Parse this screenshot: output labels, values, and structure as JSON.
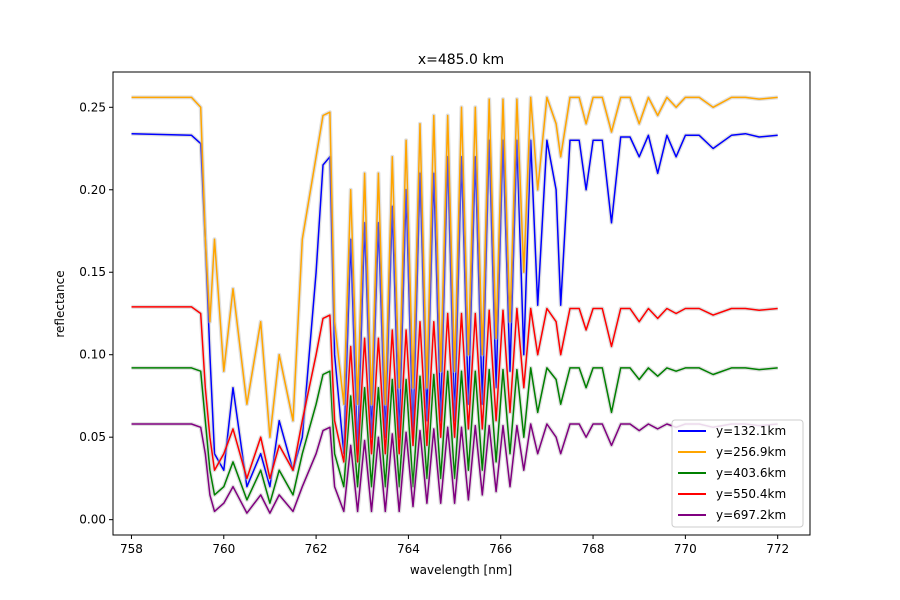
{
  "chart_data": {
    "type": "line",
    "title": "x=485.0 km",
    "xlabel": "wavelength [nm]",
    "ylabel": "reflectance",
    "xlim": [
      757.6,
      772.7
    ],
    "ylim": [
      -0.0093,
      0.2714
    ],
    "xticks": [
      758,
      760,
      762,
      764,
      766,
      768,
      770,
      772
    ],
    "yticks": [
      0.0,
      0.05,
      0.1,
      0.15,
      0.2,
      0.25
    ],
    "ytick_labels": [
      "0.00",
      "0.05",
      "0.10",
      "0.15",
      "0.20",
      "0.25"
    ],
    "grid": false,
    "legend_position": "lower-right",
    "series": [
      {
        "name": "y=132.1km",
        "color": "#0000ff",
        "x": [
          758.0,
          759.3,
          759.5,
          759.6,
          759.7,
          759.8,
          760.0,
          760.2,
          760.5,
          760.8,
          761.0,
          761.2,
          761.5,
          761.7,
          762.0,
          762.15,
          762.3,
          762.4,
          762.6,
          762.75,
          762.9,
          763.05,
          763.2,
          763.35,
          763.5,
          763.65,
          763.8,
          763.95,
          764.1,
          764.25,
          764.4,
          764.55,
          764.7,
          764.85,
          765.0,
          765.15,
          765.3,
          765.45,
          765.6,
          765.75,
          765.9,
          766.05,
          766.2,
          766.35,
          766.5,
          766.65,
          766.8,
          767.0,
          767.2,
          767.3,
          767.5,
          767.7,
          767.85,
          768.0,
          768.2,
          768.4,
          768.6,
          768.8,
          769.0,
          769.2,
          769.4,
          769.6,
          769.8,
          770.0,
          770.3,
          770.6,
          771.0,
          771.3,
          771.6,
          772.0
        ],
        "y": [
          0.234,
          0.233,
          0.228,
          0.17,
          0.1,
          0.04,
          0.03,
          0.08,
          0.02,
          0.04,
          0.02,
          0.06,
          0.03,
          0.05,
          0.15,
          0.215,
          0.22,
          0.1,
          0.04,
          0.17,
          0.04,
          0.18,
          0.05,
          0.18,
          0.05,
          0.19,
          0.05,
          0.2,
          0.05,
          0.21,
          0.06,
          0.21,
          0.06,
          0.22,
          0.06,
          0.22,
          0.07,
          0.22,
          0.07,
          0.23,
          0.08,
          0.23,
          0.09,
          0.23,
          0.1,
          0.23,
          0.13,
          0.23,
          0.2,
          0.13,
          0.23,
          0.23,
          0.2,
          0.23,
          0.23,
          0.18,
          0.232,
          0.232,
          0.22,
          0.233,
          0.21,
          0.233,
          0.22,
          0.233,
          0.233,
          0.225,
          0.233,
          0.234,
          0.232,
          0.233
        ]
      },
      {
        "name": "y=256.9km",
        "color": "#ffa500",
        "x": [
          758.0,
          759.3,
          759.5,
          759.6,
          759.7,
          759.8,
          760.0,
          760.2,
          760.5,
          760.8,
          761.0,
          761.2,
          761.5,
          761.7,
          762.0,
          762.15,
          762.3,
          762.4,
          762.6,
          762.75,
          762.9,
          763.05,
          763.2,
          763.35,
          763.5,
          763.65,
          763.8,
          763.95,
          764.1,
          764.25,
          764.4,
          764.55,
          764.7,
          764.85,
          765.0,
          765.15,
          765.3,
          765.45,
          765.6,
          765.75,
          765.9,
          766.05,
          766.2,
          766.35,
          766.5,
          766.65,
          766.8,
          767.0,
          767.2,
          767.3,
          767.5,
          767.7,
          767.85,
          768.0,
          768.2,
          768.4,
          768.6,
          768.8,
          769.0,
          769.2,
          769.4,
          769.6,
          769.8,
          770.0,
          770.3,
          770.6,
          771.0,
          771.3,
          771.6,
          772.0
        ],
        "y": [
          0.256,
          0.256,
          0.25,
          0.17,
          0.12,
          0.17,
          0.09,
          0.14,
          0.07,
          0.12,
          0.05,
          0.1,
          0.06,
          0.17,
          0.22,
          0.245,
          0.247,
          0.12,
          0.07,
          0.2,
          0.07,
          0.21,
          0.07,
          0.21,
          0.07,
          0.22,
          0.08,
          0.23,
          0.08,
          0.24,
          0.08,
          0.245,
          0.09,
          0.245,
          0.09,
          0.25,
          0.1,
          0.25,
          0.1,
          0.255,
          0.11,
          0.255,
          0.12,
          0.255,
          0.15,
          0.256,
          0.2,
          0.256,
          0.24,
          0.22,
          0.256,
          0.256,
          0.24,
          0.256,
          0.256,
          0.235,
          0.256,
          0.256,
          0.24,
          0.256,
          0.245,
          0.256,
          0.25,
          0.256,
          0.256,
          0.25,
          0.256,
          0.256,
          0.255,
          0.256
        ]
      },
      {
        "name": "y=403.6km",
        "color": "#008000",
        "x": [
          758.0,
          759.3,
          759.5,
          759.6,
          759.7,
          759.8,
          760.0,
          760.2,
          760.5,
          760.8,
          761.0,
          761.2,
          761.5,
          761.7,
          762.0,
          762.15,
          762.3,
          762.4,
          762.6,
          762.75,
          762.9,
          763.05,
          763.2,
          763.35,
          763.5,
          763.65,
          763.8,
          763.95,
          764.1,
          764.25,
          764.4,
          764.55,
          764.7,
          764.85,
          765.0,
          765.15,
          765.3,
          765.45,
          765.6,
          765.75,
          765.9,
          766.05,
          766.2,
          766.35,
          766.5,
          766.65,
          766.8,
          767.0,
          767.2,
          767.3,
          767.5,
          767.7,
          767.85,
          768.0,
          768.2,
          768.4,
          768.6,
          768.8,
          769.0,
          769.2,
          769.4,
          769.6,
          769.8,
          770.0,
          770.3,
          770.6,
          771.0,
          771.3,
          771.6,
          772.0
        ],
        "y": [
          0.092,
          0.092,
          0.09,
          0.06,
          0.03,
          0.015,
          0.02,
          0.035,
          0.012,
          0.03,
          0.01,
          0.03,
          0.015,
          0.04,
          0.07,
          0.088,
          0.09,
          0.04,
          0.02,
          0.075,
          0.02,
          0.08,
          0.02,
          0.08,
          0.02,
          0.085,
          0.02,
          0.085,
          0.02,
          0.087,
          0.025,
          0.088,
          0.025,
          0.09,
          0.025,
          0.09,
          0.03,
          0.09,
          0.03,
          0.091,
          0.035,
          0.091,
          0.04,
          0.091,
          0.05,
          0.092,
          0.065,
          0.092,
          0.085,
          0.07,
          0.092,
          0.092,
          0.08,
          0.092,
          0.092,
          0.065,
          0.092,
          0.092,
          0.085,
          0.092,
          0.087,
          0.092,
          0.09,
          0.092,
          0.092,
          0.088,
          0.092,
          0.092,
          0.091,
          0.092
        ]
      },
      {
        "name": "y=550.4km",
        "color": "#ff0000",
        "x": [
          758.0,
          759.3,
          759.5,
          759.6,
          759.7,
          759.8,
          760.0,
          760.2,
          760.5,
          760.8,
          761.0,
          761.2,
          761.5,
          761.7,
          762.0,
          762.15,
          762.3,
          762.4,
          762.6,
          762.75,
          762.9,
          763.05,
          763.2,
          763.35,
          763.5,
          763.65,
          763.8,
          763.95,
          764.1,
          764.25,
          764.4,
          764.55,
          764.7,
          764.85,
          765.0,
          765.15,
          765.3,
          765.45,
          765.6,
          765.75,
          765.9,
          766.05,
          766.2,
          766.35,
          766.5,
          766.65,
          766.8,
          767.0,
          767.2,
          767.3,
          767.5,
          767.7,
          767.85,
          768.0,
          768.2,
          768.4,
          768.6,
          768.8,
          769.0,
          769.2,
          769.4,
          769.6,
          769.8,
          770.0,
          770.3,
          770.6,
          771.0,
          771.3,
          771.6,
          772.0
        ],
        "y": [
          0.129,
          0.129,
          0.125,
          0.08,
          0.05,
          0.03,
          0.04,
          0.055,
          0.025,
          0.05,
          0.025,
          0.045,
          0.03,
          0.06,
          0.1,
          0.122,
          0.124,
          0.06,
          0.035,
          0.105,
          0.035,
          0.11,
          0.04,
          0.11,
          0.04,
          0.115,
          0.04,
          0.115,
          0.045,
          0.12,
          0.045,
          0.12,
          0.05,
          0.125,
          0.05,
          0.125,
          0.055,
          0.125,
          0.055,
          0.127,
          0.06,
          0.127,
          0.065,
          0.128,
          0.08,
          0.128,
          0.1,
          0.128,
          0.12,
          0.1,
          0.128,
          0.128,
          0.115,
          0.128,
          0.128,
          0.105,
          0.128,
          0.128,
          0.12,
          0.128,
          0.122,
          0.128,
          0.125,
          0.128,
          0.128,
          0.124,
          0.128,
          0.128,
          0.127,
          0.128
        ]
      },
      {
        "name": "y=697.2km",
        "color": "#800080",
        "x": [
          758.0,
          759.3,
          759.5,
          759.6,
          759.7,
          759.8,
          760.0,
          760.2,
          760.5,
          760.8,
          761.0,
          761.2,
          761.5,
          761.7,
          762.0,
          762.15,
          762.3,
          762.4,
          762.6,
          762.75,
          762.9,
          763.05,
          763.2,
          763.35,
          763.5,
          763.65,
          763.8,
          763.95,
          764.1,
          764.25,
          764.4,
          764.55,
          764.7,
          764.85,
          765.0,
          765.15,
          765.3,
          765.45,
          765.6,
          765.75,
          765.9,
          766.05,
          766.2,
          766.35,
          766.5,
          766.65,
          766.8,
          767.0,
          767.2,
          767.3,
          767.5,
          767.7,
          767.85,
          768.0,
          768.2,
          768.4,
          768.6,
          768.8,
          769.0,
          769.2,
          769.4,
          769.6,
          769.8,
          770.0,
          770.3,
          770.6,
          771.0,
          771.3,
          771.6,
          772.0
        ],
        "y": [
          0.058,
          0.058,
          0.056,
          0.04,
          0.015,
          0.005,
          0.01,
          0.02,
          0.004,
          0.015,
          0.004,
          0.015,
          0.005,
          0.02,
          0.04,
          0.054,
          0.056,
          0.02,
          0.005,
          0.045,
          0.005,
          0.048,
          0.005,
          0.05,
          0.005,
          0.052,
          0.005,
          0.053,
          0.008,
          0.054,
          0.01,
          0.055,
          0.01,
          0.056,
          0.01,
          0.056,
          0.012,
          0.057,
          0.015,
          0.057,
          0.017,
          0.057,
          0.02,
          0.057,
          0.03,
          0.058,
          0.04,
          0.058,
          0.05,
          0.04,
          0.058,
          0.058,
          0.05,
          0.058,
          0.058,
          0.045,
          0.058,
          0.058,
          0.054,
          0.058,
          0.055,
          0.058,
          0.056,
          0.058,
          0.058,
          0.056,
          0.058,
          0.058,
          0.057,
          0.058
        ]
      }
    ]
  }
}
